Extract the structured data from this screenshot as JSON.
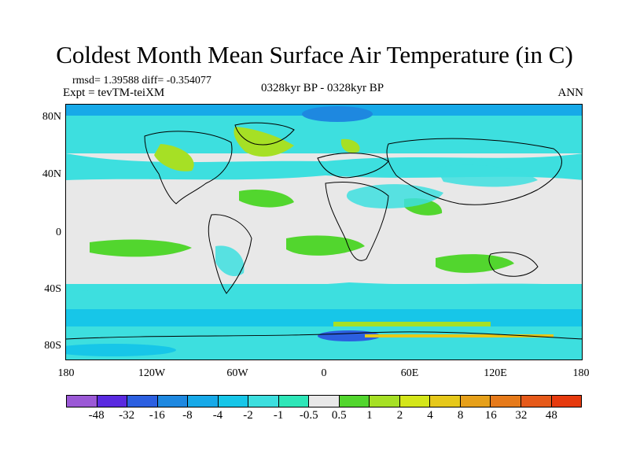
{
  "title": "Coldest Month Mean Surface Air Temperature (in C)",
  "stats": "rmsd= 1.39588 diff= -0.354077",
  "expt": "Expt = tevTM-teiXM",
  "period": "0328kyr BP - 0328kyr BP",
  "season": "ANN",
  "lat_labels": [
    "80N",
    "40N",
    "0",
    "40S",
    "80S"
  ],
  "lon_labels": [
    "180",
    "120W",
    "60W",
    "0",
    "60E",
    "120E",
    "180"
  ],
  "colorbar": {
    "labels": [
      "-48",
      "-32",
      "-16",
      "-8",
      "-4",
      "-2",
      "-1",
      "-0.5",
      "0.5",
      "1",
      "2",
      "4",
      "8",
      "16",
      "32",
      "48"
    ],
    "colors": [
      "#9b59d6",
      "#5a2ae0",
      "#2c5fe0",
      "#1e88e0",
      "#17a9e8",
      "#17c6e8",
      "#3ddfdf",
      "#2ee6b8",
      "#e8e8e8",
      "#52d62e",
      "#a6e025",
      "#d4e61a",
      "#e6c81a",
      "#e6a01a",
      "#e67a1a",
      "#e65a1a",
      "#e63a0e"
    ]
  }
}
